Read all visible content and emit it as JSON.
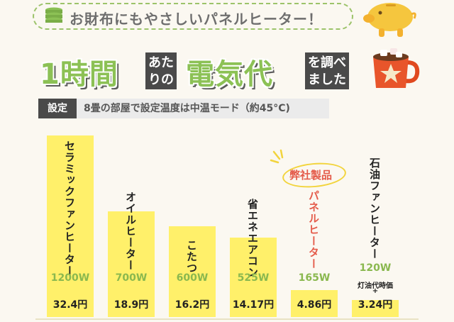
{
  "banner": {
    "text": "お財布にもやさしいパネルヒーター！"
  },
  "headline": {
    "part1": "1時間",
    "box1": [
      "あた",
      "りの"
    ],
    "part2": "電気代",
    "box2": [
      "を調べ",
      "ました"
    ]
  },
  "setting": {
    "label": "設定",
    "text": "8畳の部屋で設定温度は中温モード（約45°C)"
  },
  "chart_data": {
    "type": "bar",
    "categories": [
      "セラミックファンヒーター",
      "オイルヒーター",
      "こたつ",
      "省エネエアコン",
      "パネルヒーター",
      "石油ファンヒーター"
    ],
    "watts": [
      "1200W",
      "700W",
      "600W",
      "525W",
      "165W",
      "120W"
    ],
    "prices": [
      "32.4円",
      "18.9円",
      "16.2円",
      "14.17円",
      "4.86円",
      "3.24円"
    ],
    "values": [
      32.4,
      18.9,
      16.2,
      14.17,
      4.86,
      3.24
    ],
    "highlight_badge": "弊社製品",
    "kerosene_note": "灯油代時価",
    "plus_sign": "+",
    "colors": {
      "bar": "#fff06a",
      "watt": "#8ab84f",
      "highlight": "#e45b4a",
      "accent": "#8cc155"
    }
  }
}
